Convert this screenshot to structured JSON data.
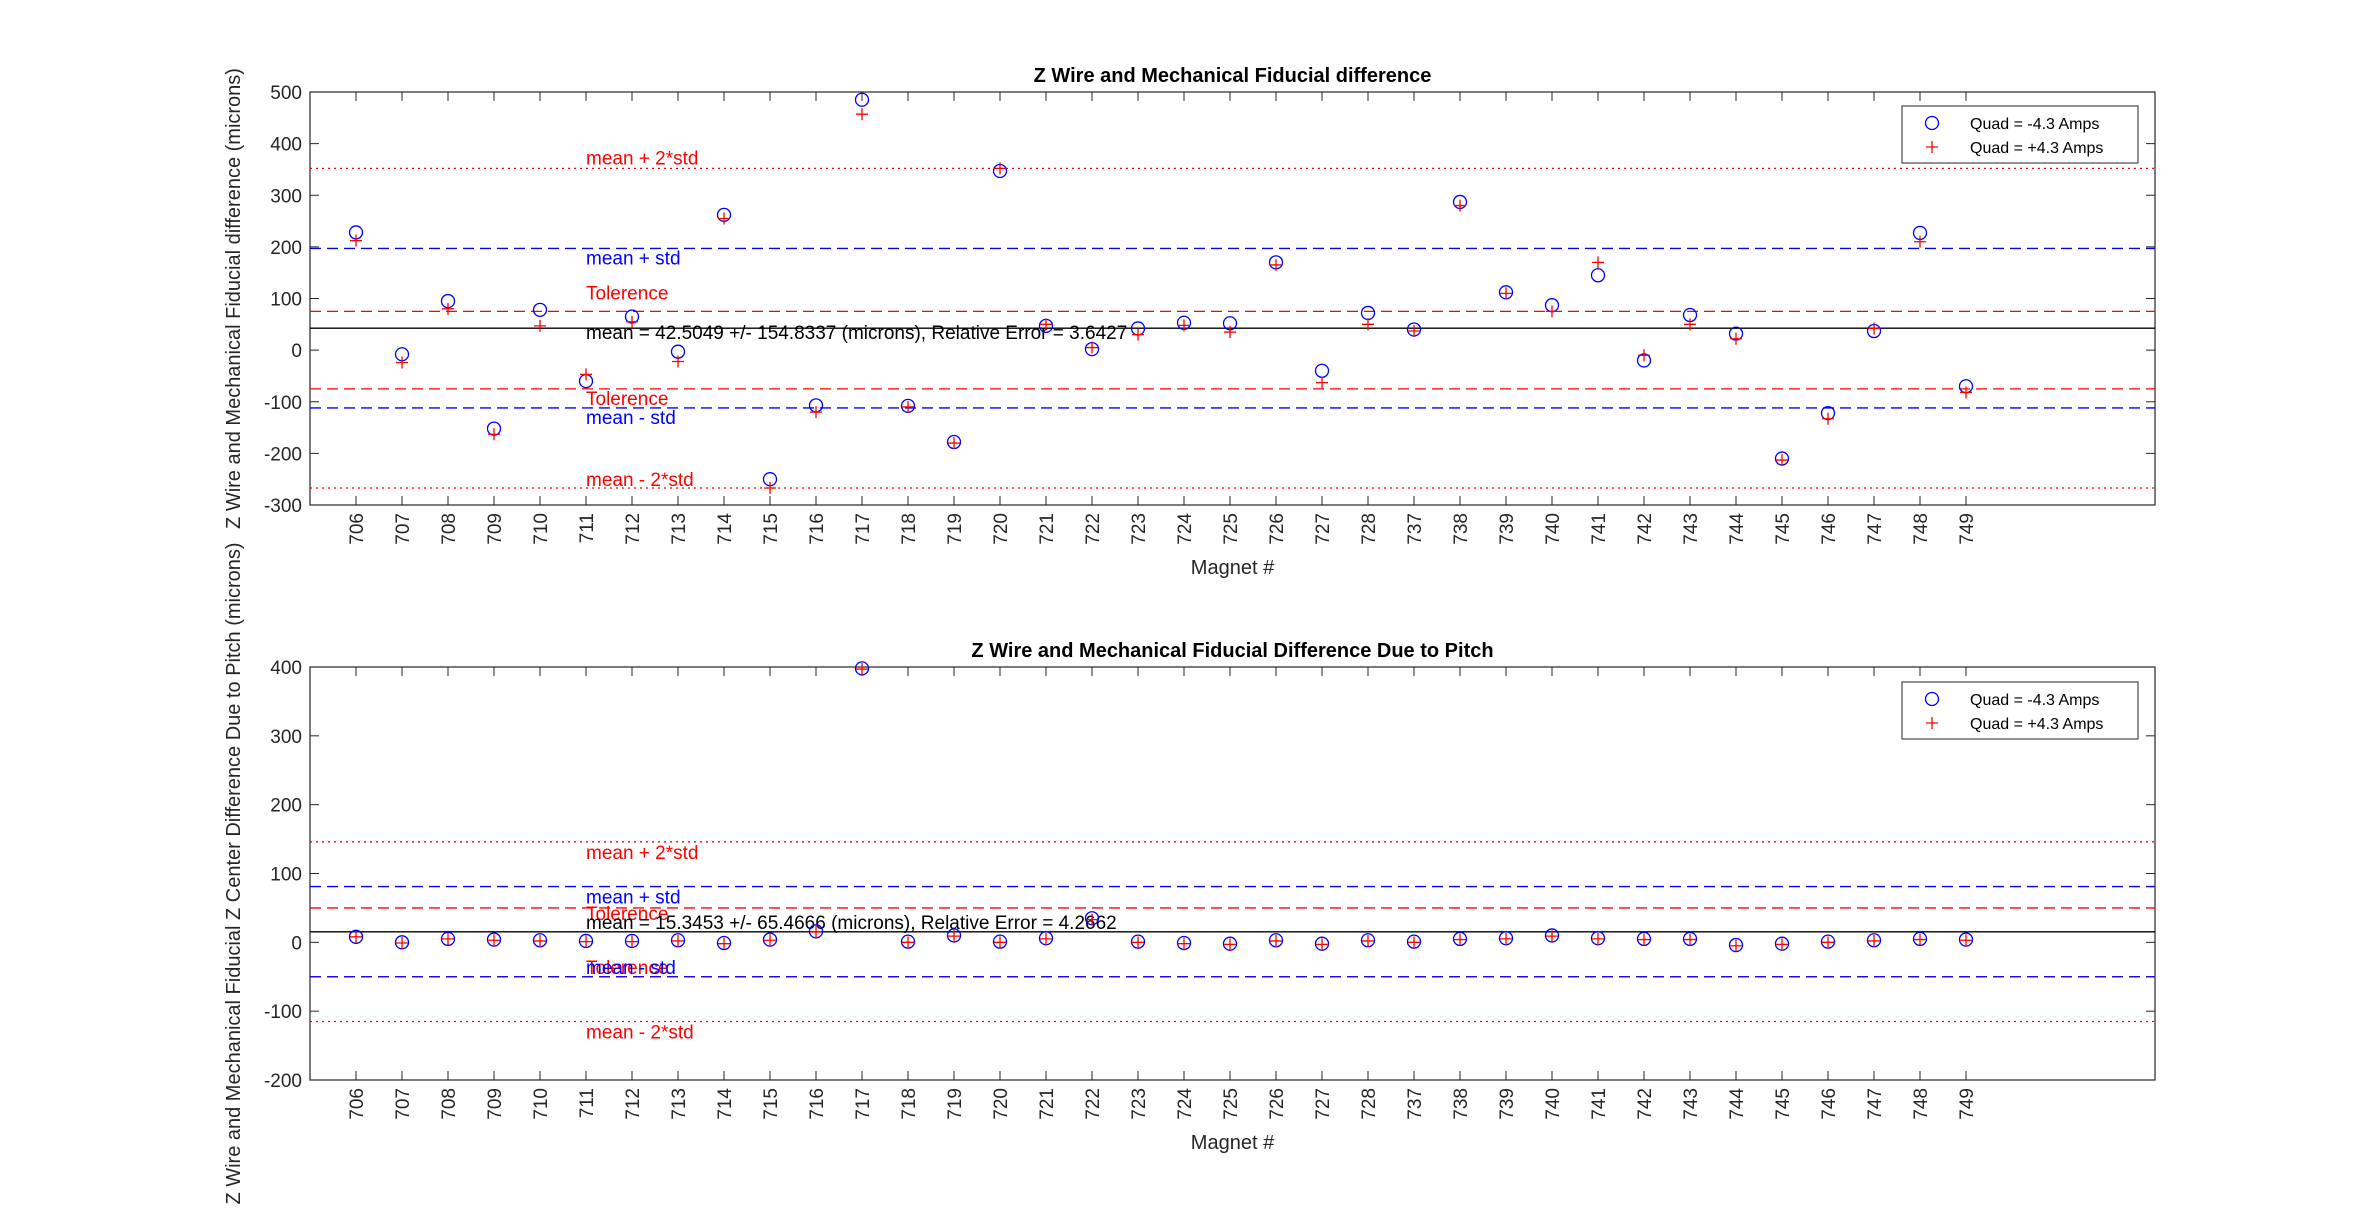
{
  "colors": {
    "series_neg": "#0000ff",
    "series_pos": "#ff0000",
    "mean_line": "#000000",
    "std_line": "#0000ff",
    "tol_line": "#ff0000",
    "two_std_line": "#ff0000"
  },
  "chart_data": [
    {
      "type": "scatter",
      "title": "Z Wire and Mechanical Fiducial difference",
      "xlabel": "Magnet #",
      "ylabel": "Z Wire and Mechanical Fiducial difference (microns)",
      "categories": [
        "706",
        "707",
        "708",
        "709",
        "710",
        "711",
        "712",
        "713",
        "714",
        "715",
        "716",
        "717",
        "718",
        "719",
        "720",
        "721",
        "722",
        "723",
        "724",
        "725",
        "726",
        "727",
        "728",
        "737",
        "738",
        "739",
        "740",
        "741",
        "742",
        "743",
        "744",
        "745",
        "746",
        "747",
        "748",
        "749"
      ],
      "ylim": [
        -300,
        500
      ],
      "yticks": [
        "500",
        "400",
        "300",
        "200",
        "100",
        "0",
        "-100",
        "-200",
        "-300"
      ],
      "grid": false,
      "legend_position": "top-right",
      "series": [
        {
          "name": "Quad = -4.3 Amps",
          "marker": "circle",
          "values": [
            228,
            -8,
            95,
            -152,
            78,
            -60,
            65,
            -3,
            262,
            -250,
            -107,
            485,
            -108,
            -178,
            347,
            47,
            2,
            42,
            53,
            52,
            170,
            -40,
            72,
            40,
            287,
            112,
            87,
            145,
            -20,
            68,
            32,
            -210,
            -122,
            37,
            227,
            -70
          ]
        },
        {
          "name": "Quad = +4.3 Amps",
          "marker": "plus",
          "values": [
            212,
            -24,
            80,
            -163,
            47,
            -47,
            55,
            -22,
            255,
            -267,
            -120,
            457,
            -110,
            -180,
            352,
            50,
            5,
            30,
            48,
            35,
            165,
            -63,
            50,
            37,
            280,
            110,
            75,
            170,
            -10,
            50,
            22,
            -213,
            -133,
            42,
            210,
            -82
          ]
        }
      ],
      "reference_lines": [
        {
          "value": 352,
          "label": "mean + 2*std",
          "style": "dotted",
          "color_key": "two_std_line"
        },
        {
          "value": 197,
          "label": "mean + std",
          "style": "dashed",
          "color_key": "std_line"
        },
        {
          "value": 75,
          "label": "Tolerence",
          "style": "dashed",
          "color_key": "tol_line"
        },
        {
          "value": 42.5,
          "label": "mean = 42.5049 +/- 154.8337 (microns), Relative Error = 3.6427",
          "style": "solid",
          "color_key": "mean_line"
        },
        {
          "value": -75,
          "label": "Tolerence",
          "style": "dashed",
          "color_key": "tol_line"
        },
        {
          "value": -112,
          "label": "mean - std",
          "style": "dashed",
          "color_key": "std_line"
        },
        {
          "value": -267,
          "label": "mean - 2*std",
          "style": "dotted",
          "color_key": "two_std_line"
        }
      ]
    },
    {
      "type": "scatter",
      "title": "Z Wire and Mechanical Fiducial Difference Due to Pitch",
      "xlabel": "Magnet #",
      "ylabel": "Z Wire and Mechanical Fiducial Z Center Difference Due to Pitch (microns)",
      "categories": [
        "706",
        "707",
        "708",
        "709",
        "710",
        "711",
        "712",
        "713",
        "714",
        "715",
        "716",
        "717",
        "718",
        "719",
        "720",
        "721",
        "722",
        "723",
        "724",
        "725",
        "726",
        "727",
        "728",
        "737",
        "738",
        "739",
        "740",
        "741",
        "742",
        "743",
        "744",
        "745",
        "746",
        "747",
        "748",
        "749"
      ],
      "ylim": [
        -200,
        400
      ],
      "yticks": [
        "400",
        "300",
        "200",
        "100",
        "0",
        "-100",
        "-200"
      ],
      "grid": false,
      "legend_position": "top-right",
      "series": [
        {
          "name": "Quad = -4.3 Amps",
          "marker": "circle",
          "values": [
            8,
            0,
            5,
            4,
            3,
            2,
            2,
            3,
            -1,
            4,
            16,
            398,
            1,
            10,
            1,
            6,
            35,
            1,
            -1,
            -2,
            3,
            -2,
            3,
            1,
            5,
            6,
            10,
            6,
            5,
            5,
            -4,
            -2,
            1,
            3,
            5,
            4
          ]
        },
        {
          "name": "Quad = +4.3 Amps",
          "marker": "plus",
          "values": [
            8,
            -1,
            5,
            3,
            2,
            1,
            1,
            2,
            -2,
            3,
            15,
            397,
            0,
            9,
            0,
            5,
            33,
            0,
            -2,
            -3,
            2,
            -3,
            2,
            0,
            4,
            5,
            9,
            5,
            4,
            4,
            -5,
            -3,
            0,
            2,
            4,
            3
          ]
        }
      ],
      "reference_lines": [
        {
          "value": 146,
          "label": "mean + 2*std",
          "style": "dotted",
          "color_key": "two_std_line"
        },
        {
          "value": 81,
          "label": "mean + std",
          "style": "dashed",
          "color_key": "std_line"
        },
        {
          "value": 50,
          "label": "Tolerence",
          "style": "dashed",
          "color_key": "tol_line"
        },
        {
          "value": 15.3,
          "label": "mean = 15.3453 +/- 65.4666 (microns), Relative Error = 4.2662",
          "style": "solid",
          "color_key": "mean_line"
        },
        {
          "value": -50,
          "label": "Tolerence",
          "style": "dashed",
          "color_key": "tol_line"
        },
        {
          "value": -50,
          "label": "mean - std",
          "style": "dashed",
          "color_key": "std_line"
        },
        {
          "value": -115,
          "label": "mean - 2*std",
          "style": "dotted",
          "color_key": "two_std_line"
        }
      ]
    }
  ]
}
